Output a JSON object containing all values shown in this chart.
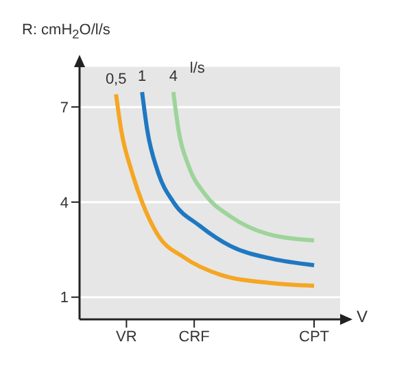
{
  "chart_data": {
    "type": "line",
    "ylabel": "R: cmH$_{2}$O/l/s",
    "xlabel": "V",
    "annotations": [
      "l/s"
    ],
    "categories": [
      null,
      null,
      null,
      null,
      null,
      null,
      null,
      null,
      null,
      "VR",
      null,
      null,
      null,
      null,
      null,
      null,
      null,
      null,
      null,
      null,
      null,
      null,
      "CRF",
      null,
      null,
      null,
      null,
      null,
      null,
      null,
      null,
      null,
      null,
      null,
      null,
      null,
      null,
      null,
      null,
      null,
      null,
      null,
      null,
      null,
      null,
      "CPT",
      null,
      null,
      null,
      null,
      null
    ],
    "ylim": [
      0.3,
      8.3
    ],
    "yticks": [
      1,
      4,
      7
    ],
    "grid": "y",
    "marker": "none",
    "line_style": "solid",
    "series": [
      {
        "name": "0,5",
        "color": "#f5a623",
        "values": [
          null,
          null,
          null,
          null,
          null,
          null,
          null,
          7.4,
          6.26,
          null,
          4.97,
          null,
          4.0,
          null,
          null,
          2.97,
          null,
          null,
          null,
          null,
          2.26,
          null,
          null,
          null,
          null,
          null,
          null,
          1.71,
          null,
          null,
          null,
          null,
          null,
          null,
          null,
          null,
          null,
          1.44,
          null,
          null,
          null,
          null,
          null,
          null,
          null,
          1.36,
          null,
          null,
          null,
          null,
          null
        ]
      },
      {
        "name": "1",
        "color": "#1f78c1",
        "values": [
          null,
          null,
          null,
          null,
          null,
          null,
          null,
          null,
          null,
          null,
          null,
          null,
          7.47,
          6.26,
          null,
          4.97,
          null,
          null,
          4.0,
          null,
          null,
          null,
          null,
          3.26,
          null,
          null,
          null,
          null,
          null,
          2.61,
          null,
          null,
          null,
          null,
          null,
          null,
          null,
          2.21,
          null,
          null,
          null,
          null,
          null,
          null,
          null,
          2.01,
          null,
          null,
          null,
          null,
          null
        ]
      },
      {
        "name": "4",
        "color": "#9dd49a",
        "values": [
          null,
          null,
          null,
          null,
          null,
          null,
          null,
          null,
          null,
          null,
          null,
          null,
          null,
          null,
          null,
          null,
          null,
          null,
          7.47,
          6.26,
          null,
          5.11,
          null,
          null,
          4.26,
          null,
          null,
          null,
          null,
          3.54,
          null,
          null,
          null,
          null,
          null,
          null,
          3.0,
          null,
          null,
          null,
          null,
          null,
          null,
          null,
          null,
          2.79,
          null,
          null,
          null,
          null,
          null
        ]
      }
    ]
  }
}
